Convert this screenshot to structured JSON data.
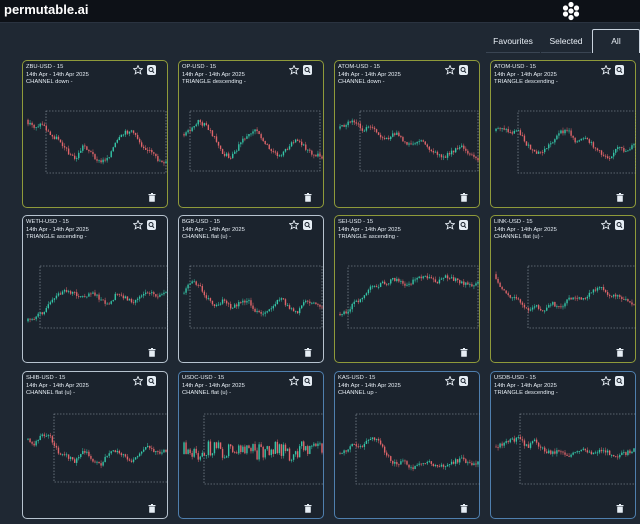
{
  "app": {
    "brand": "permutable.ai"
  },
  "tabs": {
    "favourites": "Favourites",
    "selected": "Selected",
    "all": "All"
  },
  "colors": {
    "background": "#1f2833",
    "topbar": "#0d1117",
    "card_border_yellow": "#8f9a3a",
    "card_border_white": "#b7c3cf",
    "card_border_blue": "#4f7fae",
    "candle_up": "#35c6a8",
    "candle_down": "#e0656a",
    "price_line": "#c7cdd4",
    "pattern_box": "#9aa4ae"
  },
  "icons": [
    "hexagon-cluster-logo-icon",
    "star-icon",
    "expand-icon",
    "trash-icon"
  ],
  "cards": [
    {
      "title": "ZBU-USD - 15",
      "range": "14th Apr - 14th Apr 2025",
      "pattern": "CHANNEL down -",
      "border": "yellow"
    },
    {
      "title": "OP-USD - 15",
      "range": "14th Apr - 14th Apr 2025",
      "pattern": "TRIANGLE descending -",
      "border": "yellow"
    },
    {
      "title": "ATOM-USD - 15",
      "range": "14th Apr - 14th Apr 2025",
      "pattern": "CHANNEL down -",
      "border": "yellow"
    },
    {
      "title": "ATOM-USD - 15",
      "range": "14th Apr - 14th Apr 2025",
      "pattern": "TRIANGLE descending -",
      "border": "yellow"
    },
    {
      "title": "WETH-USD - 15",
      "range": "14th Apr - 14th Apr 2025",
      "pattern": "TRIANGLE ascending -",
      "border": "white"
    },
    {
      "title": "BGB-USD - 15",
      "range": "14th Apr - 14th Apr 2025",
      "pattern": "CHANNEL flat (u) -",
      "border": "white"
    },
    {
      "title": "SEI-USD - 15",
      "range": "14th Apr - 14th Apr 2025",
      "pattern": "TRIANGLE ascending -",
      "border": "yellow"
    },
    {
      "title": "LINK-USD - 15",
      "range": "14th Apr - 14th Apr 2025",
      "pattern": "CHANNEL flat (u) -",
      "border": "yellow"
    },
    {
      "title": "SHIB-USD - 15",
      "range": "14th Apr - 14th Apr 2025",
      "pattern": "CHANNEL flat (u) -",
      "border": "white"
    },
    {
      "title": "USDC-USD - 15",
      "range": "14th Apr - 14th Apr 2025",
      "pattern": "CHANNEL flat (u) -",
      "border": "blue"
    },
    {
      "title": "KAS-USD - 15",
      "range": "14th Apr - 14th Apr 2025",
      "pattern": "CHANNEL up -",
      "border": "blue"
    },
    {
      "title": "USDB-USD - 15",
      "range": "14th Apr - 14th Apr 2025",
      "pattern": "TRIANGLE descending -",
      "border": "blue"
    }
  ]
}
